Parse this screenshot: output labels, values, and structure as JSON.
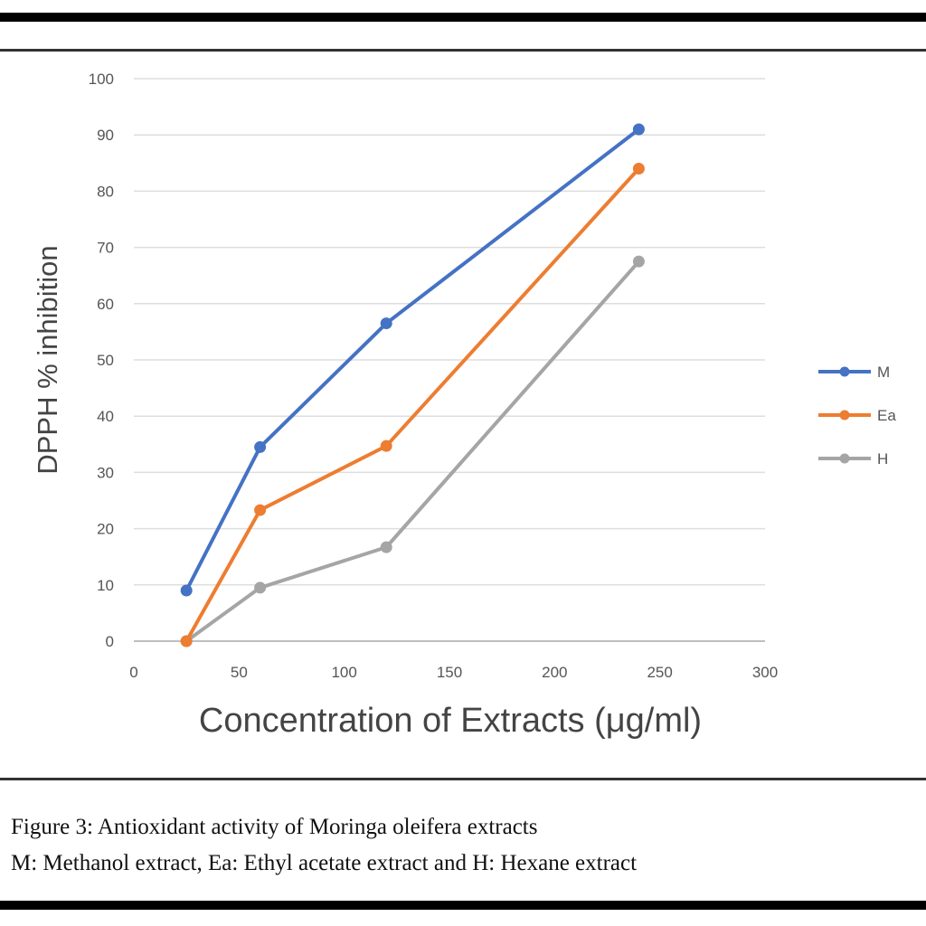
{
  "chart_data": {
    "type": "line",
    "xlabel": "Concentration of Extracts (μg/ml)",
    "ylabel": "DPPH % inhibition",
    "xlim": [
      0,
      300
    ],
    "ylim": [
      0,
      100
    ],
    "xticks": [
      0,
      50,
      100,
      150,
      200,
      250,
      300
    ],
    "yticks": [
      0,
      10,
      20,
      30,
      40,
      50,
      60,
      70,
      80,
      90,
      100
    ],
    "grid": "horizontal",
    "legend": "right",
    "x": [
      25,
      60,
      120,
      240
    ],
    "series": [
      {
        "name": "M",
        "color": "#4472c4",
        "values": [
          9,
          34.5,
          56.5,
          91
        ]
      },
      {
        "name": "Ea",
        "color": "#ed7d31",
        "values": [
          0,
          23.3,
          34.7,
          84
        ]
      },
      {
        "name": "H",
        "color": "#a5a5a5",
        "values": [
          0,
          9.5,
          16.7,
          67.5
        ]
      }
    ]
  },
  "caption": {
    "line1": "Figure 3: Antioxidant activity of Moringa oleifera extracts",
    "line2": "M: Methanol extract, Ea: Ethyl acetate extract and H: Hexane extract"
  }
}
